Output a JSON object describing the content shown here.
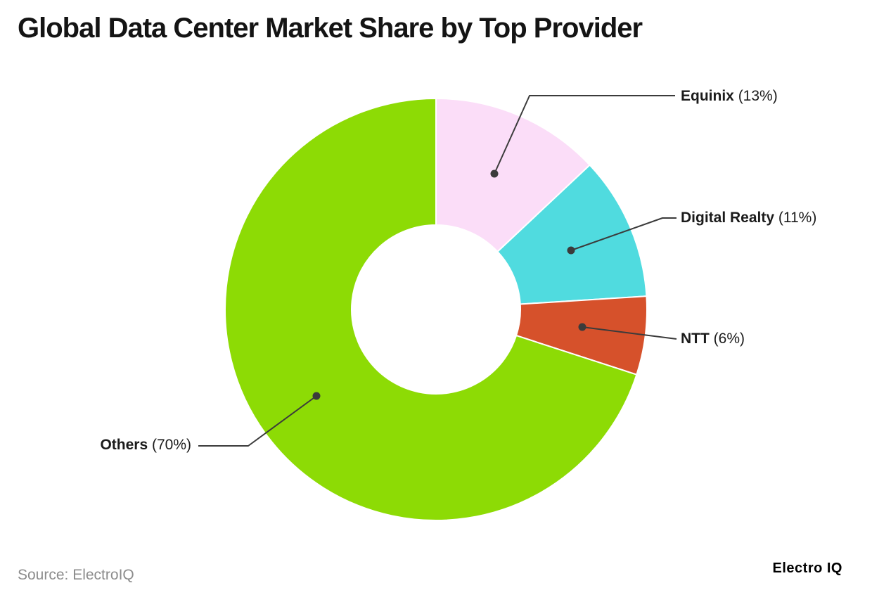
{
  "title": "Global Data Center Market Share by Top Provider",
  "source_note": "Source: ElectroIQ",
  "brand": "Electro IQ",
  "chart_data": {
    "type": "pie",
    "subtype": "donut",
    "title": "Global Data Center Market Share by Top Provider",
    "inner_radius_ratio": 0.4,
    "start_angle_deg": -90,
    "direction": "clockwise",
    "categories": [
      "Equinix",
      "Digital Realty",
      "NTT",
      "Others"
    ],
    "values": [
      13,
      11,
      6,
      70
    ],
    "unit": "%",
    "segments": [
      {
        "name": "Equinix",
        "value": 13,
        "pct": "(13%)",
        "color": "#FBDDF8"
      },
      {
        "name": "Digital Realty",
        "value": 11,
        "pct": "(11%)",
        "color": "#50DBDF"
      },
      {
        "name": "NTT",
        "value": 6,
        "pct": "(6%)",
        "color": "#D6512B"
      },
      {
        "name": "Others",
        "value": 70,
        "pct": "(70%)",
        "color": "#8DDB05"
      }
    ],
    "colors": {
      "leader_line": "#3B3B3B",
      "title_text": "#141414",
      "label_text": "#1B1B1B",
      "source_text": "#8C8C8C",
      "background": "#FFFFFF",
      "slice_border": "#FFFFFF"
    },
    "legend_position": "none",
    "annotations": "callout labels with leader lines and dots"
  }
}
